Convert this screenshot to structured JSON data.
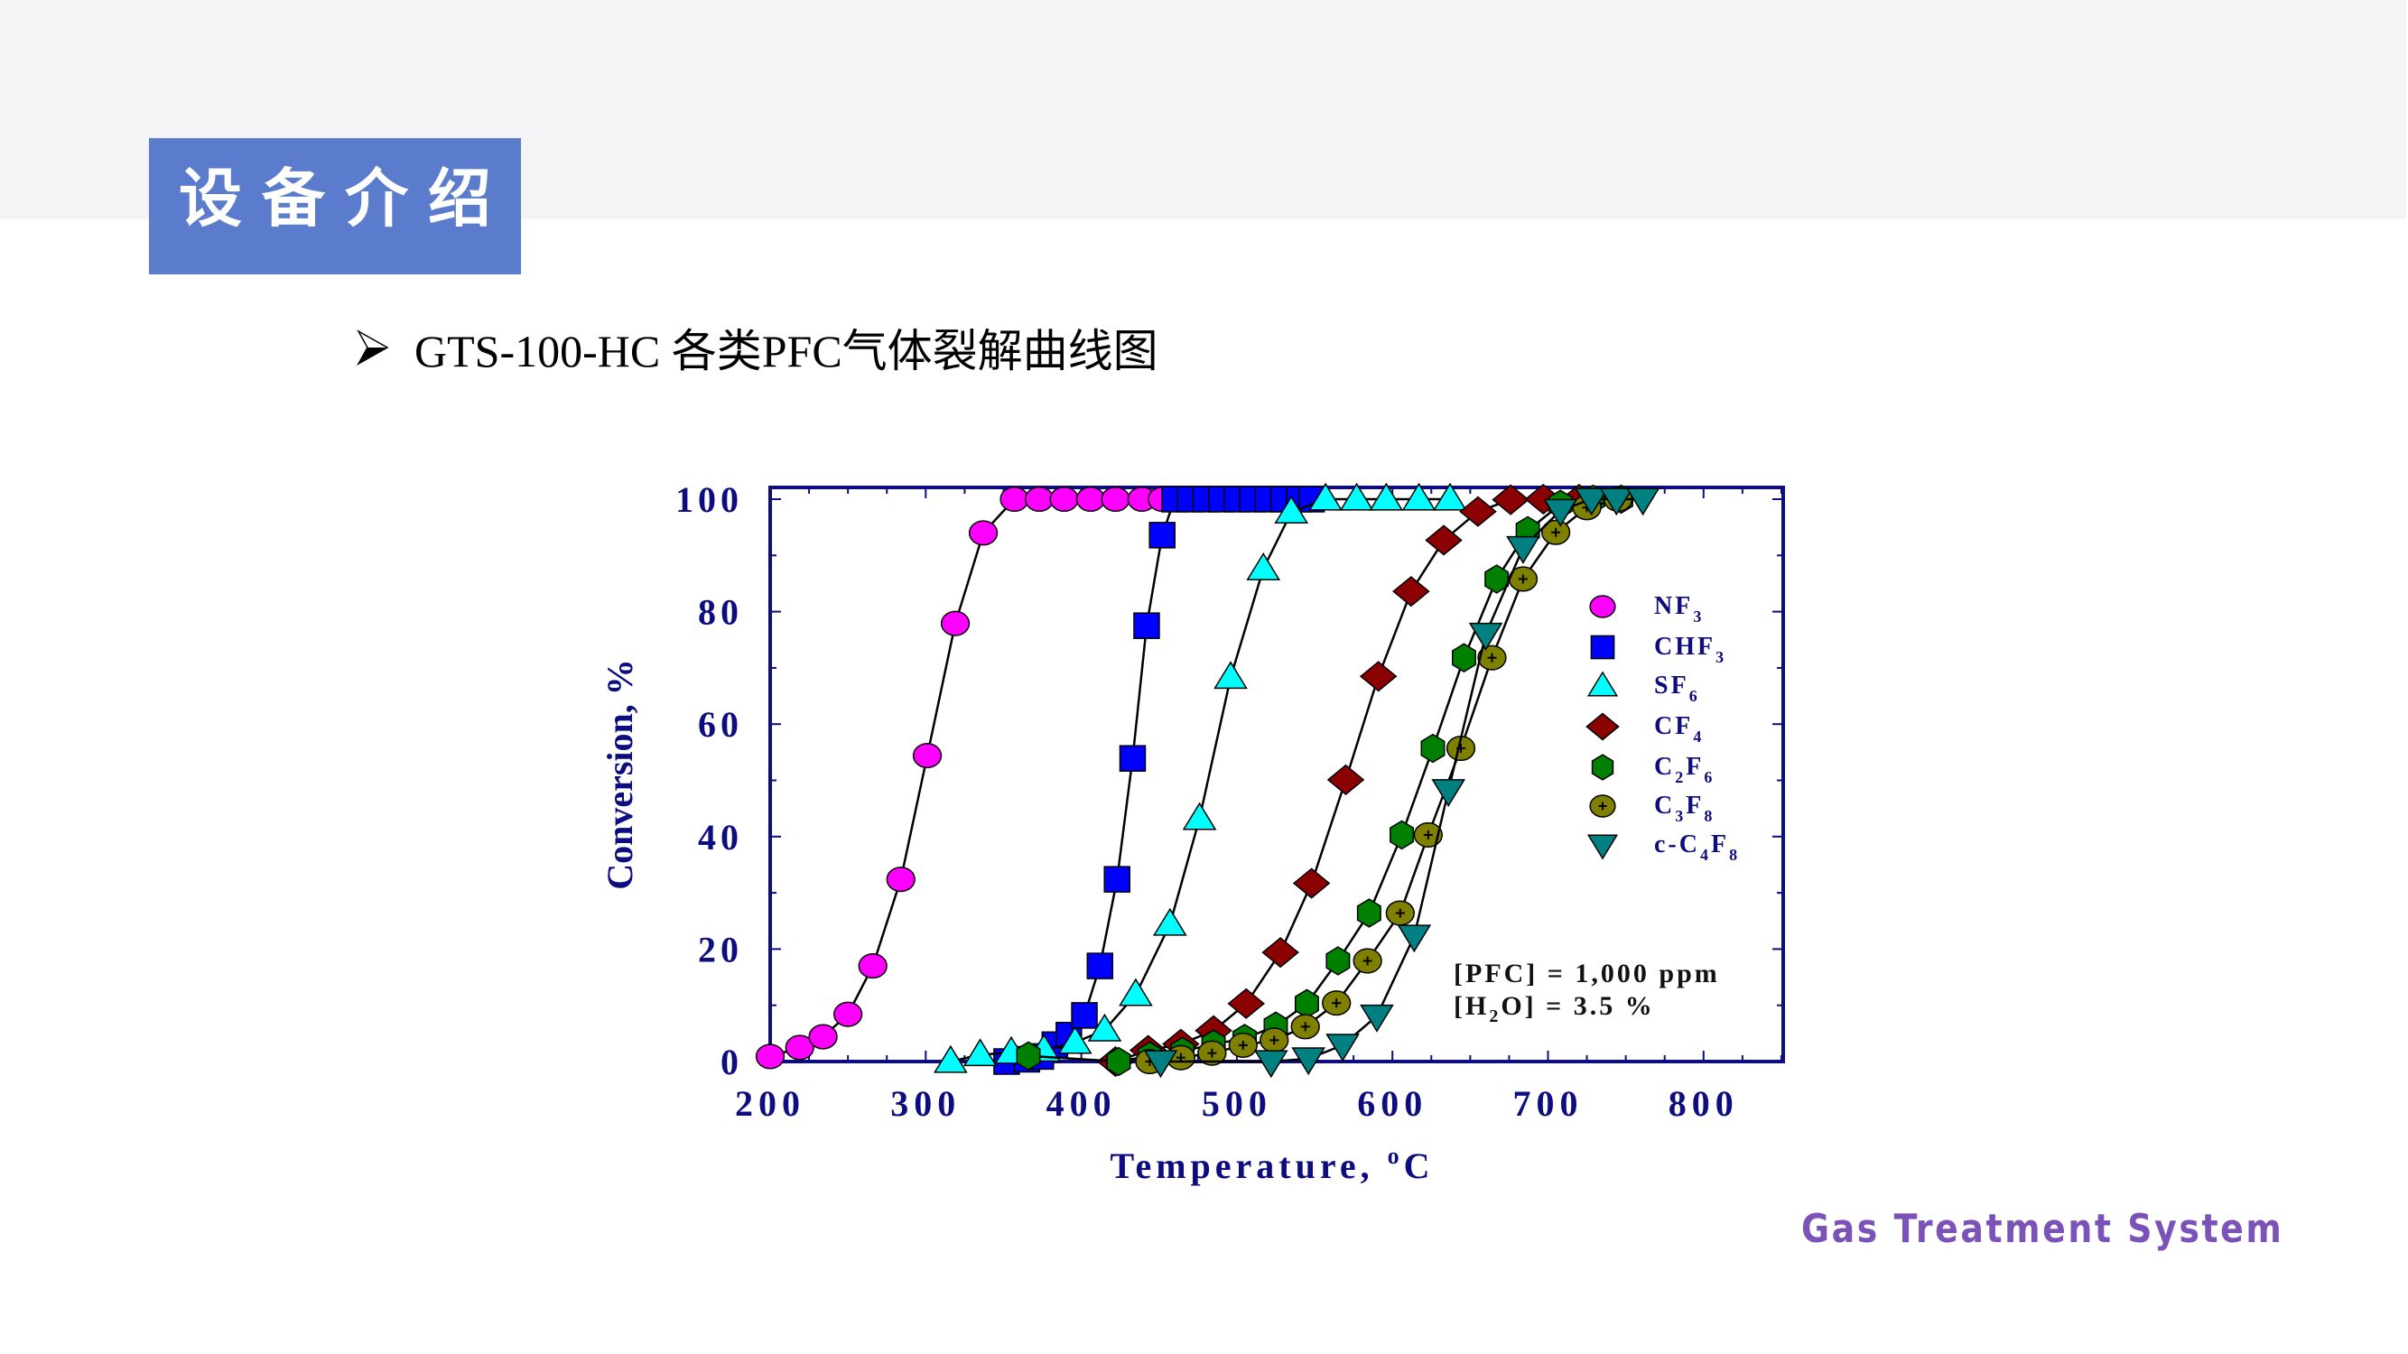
{
  "slide": {
    "section_title": "设备介绍",
    "subtitle": "GTS-100-HC 各类PFC气体裂解曲线图",
    "bullet_icon": "arrow-bullet-icon",
    "footer": "Gas Treatment System",
    "colors": {
      "band": "#f4f4f6",
      "title_box": "#5b7ccc",
      "footer": "#7b52b8",
      "axis": "#0d0d80"
    }
  },
  "chart_data": {
    "type": "scatter",
    "title": "",
    "xlabel": "Temperature, °C",
    "ylabel": "Conversion, %",
    "xlim": [
      200,
      850
    ],
    "ylim": [
      0,
      102
    ],
    "xticks": [
      200,
      300,
      400,
      500,
      600,
      700,
      800
    ],
    "yticks": [
      0,
      20,
      40,
      60,
      80,
      100
    ],
    "grid": false,
    "legend_position": "upper right (inside)",
    "annotations": [
      "[PFC] = 1,000 ppm",
      "[H2O] = 3.5 %"
    ],
    "series": [
      {
        "name": "NF3",
        "label_main": "NF",
        "label_sub": "3",
        "marker": "circle",
        "color": "#ff00ff",
        "x": [
          200,
          219,
          234,
          250,
          266,
          284,
          301,
          319,
          337,
          357,
          373,
          389,
          406,
          422,
          439,
          452
        ],
        "y": [
          0.9,
          2.5,
          4.4,
          8.4,
          17.0,
          32.4,
          54.4,
          77.9,
          94.0,
          100,
          100,
          100,
          100,
          100,
          100,
          100
        ]
      },
      {
        "name": "CHF3",
        "label_main": "CHF",
        "label_sub": "3",
        "marker": "square",
        "color": "#0000ff",
        "x": [
          352,
          365,
          374,
          383,
          392,
          402,
          412,
          423,
          433,
          442,
          452,
          460,
          470,
          480,
          490,
          500,
          510,
          520,
          530,
          540,
          548
        ],
        "y": [
          0,
          0.4,
          0.9,
          3.0,
          4.7,
          8.2,
          17.0,
          32.4,
          53.9,
          77.5,
          93.6,
          100,
          100,
          100,
          100,
          100,
          100,
          100,
          100,
          100,
          100
        ]
      },
      {
        "name": "SF6",
        "label_main": "SF",
        "label_sub": "6",
        "marker": "triangle-up",
        "color": "#00ffff",
        "x": [
          316,
          335,
          355,
          376,
          396,
          415,
          435,
          457,
          476,
          496,
          517,
          535,
          557,
          577,
          596,
          617,
          637
        ],
        "y": [
          0,
          1.2,
          1.6,
          2.0,
          3.4,
          5.6,
          11.9,
          24.4,
          43.2,
          68.3,
          87.6,
          97.7,
          100,
          100,
          100,
          100,
          100
        ]
      },
      {
        "name": "CF4",
        "label_main": "CF",
        "label_sub": "4",
        "marker": "diamond",
        "color": "#8b0000",
        "x": [
          422,
          443,
          464,
          485,
          506,
          528,
          548,
          570,
          591,
          612,
          633,
          655,
          676,
          697,
          720
        ],
        "y": [
          0,
          2.0,
          3.1,
          5.5,
          10.3,
          19.4,
          31.7,
          50.1,
          68.5,
          83.6,
          92.7,
          97.8,
          99.9,
          100,
          100
        ]
      },
      {
        "name": "C2F6",
        "label_main": "C",
        "label_sub": "2",
        "label_main2": "F",
        "label_sub2": "6",
        "marker": "hexagon",
        "color": "#008000",
        "x": [
          366,
          424,
          444,
          465,
          485,
          505,
          525,
          545,
          565,
          585,
          606,
          626,
          646,
          667,
          687,
          708,
          729,
          747
        ],
        "y": [
          1.0,
          0,
          1.0,
          1.8,
          3.1,
          4.1,
          6.3,
          10.3,
          17.9,
          26.4,
          40.3,
          55.7,
          71.8,
          85.8,
          94.4,
          99.1,
          100,
          100
        ]
      },
      {
        "name": "C3F8",
        "label_main": "C",
        "label_sub": "3",
        "label_main2": "F",
        "label_sub2": "8",
        "marker": "circle-plus",
        "color": "#808000",
        "x": [
          444,
          464,
          484,
          504,
          524,
          544,
          564,
          584,
          605,
          623,
          644,
          664,
          684,
          705,
          725,
          745
        ],
        "y": [
          0,
          0.7,
          1.5,
          2.9,
          3.8,
          6.2,
          10.4,
          17.9,
          26.4,
          40.3,
          55.7,
          71.8,
          85.8,
          94.1,
          98.5,
          100
        ]
      },
      {
        "name": "c-C4F8",
        "label_main": "c-C",
        "label_sub": "4",
        "label_main2": "F",
        "label_sub2": "8",
        "marker": "triangle-down",
        "color": "#008080",
        "x": [
          451,
          522,
          546,
          568,
          590,
          614,
          636,
          660,
          684,
          708,
          728,
          744,
          761
        ],
        "y": [
          0,
          0,
          0.5,
          2.9,
          8.1,
          22.3,
          48.2,
          76.0,
          91.4,
          98.0,
          100,
          100,
          100
        ]
      }
    ]
  }
}
